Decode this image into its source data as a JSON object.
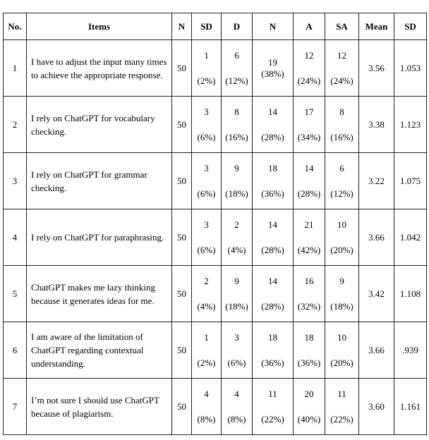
{
  "headers": [
    "No.",
    "Items",
    "N",
    "SD",
    "D",
    "N",
    "A",
    "SA",
    "Mean",
    "SD"
  ],
  "rows": [
    {
      "no": "1",
      "item": "I have to adjust the input many times to achieve the appropriate response.",
      "n": "50",
      "counts": [
        [
          "1",
          "(2%)"
        ],
        [
          "6",
          "(12%)"
        ],
        [
          "19",
          "(38%)"
        ],
        [
          "12",
          "(24%)"
        ],
        [
          "12",
          "(24%)"
        ]
      ],
      "mean": "3.56",
      "sd": "1.053"
    },
    {
      "no": "2",
      "item": "I rely on ChatGPT for vocabulary checking.",
      "n": "50",
      "counts": [
        [
          "3",
          "(6%)"
        ],
        [
          "8",
          "(16%)"
        ],
        [
          "14",
          "(28%)"
        ],
        [
          "17",
          "(34%)"
        ],
        [
          "8",
          "(16%)"
        ]
      ],
      "mean": "3.38",
      "sd": "1.123"
    },
    {
      "no": "3",
      "item": "I rely on ChatGPT for grammar checking.",
      "n": "50",
      "counts": [
        [
          "3",
          "(6%)"
        ],
        [
          "9",
          "(18%)"
        ],
        [
          "18",
          "(36%)"
        ],
        [
          "14",
          "(28%)"
        ],
        [
          "6",
          "(12%)"
        ]
      ],
      "mean": "3.22",
      "sd": "1.075"
    },
    {
      "no": "4",
      "item": "I rely on ChatGPT for paraphrasing.",
      "n": "50",
      "counts": [
        [
          "3",
          "(6%)"
        ],
        [
          "2",
          "(4%)"
        ],
        [
          "14",
          "(28%)"
        ],
        [
          "21",
          "(42%)"
        ],
        [
          "10",
          "(20%)"
        ]
      ],
      "mean": "3.66",
      "sd": "1.042"
    },
    {
      "no": "5",
      "item": "ChatGPT makes me lazy thinking because it generates ideas for me.",
      "n": "50",
      "counts": [
        [
          "2",
          "(4%)"
        ],
        [
          "9",
          "(18%)"
        ],
        [
          "14",
          "(28%)"
        ],
        [
          "16",
          "(32%)"
        ],
        [
          "9",
          "(18%)"
        ]
      ],
      "mean": "3.42",
      "sd": "1.108"
    },
    {
      "no": "6",
      "item": "I am aware of the limitation of ChatGPT regarding contextual understanding.",
      "n": "50",
      "counts": [
        [
          "1",
          "(2%)"
        ],
        [
          "3",
          "(6%)"
        ],
        [
          "18",
          "(36%)"
        ],
        [
          "18",
          "(36%)"
        ],
        [
          "10",
          "(20%)"
        ]
      ],
      "mean": "3.66",
      "sd": ".939"
    },
    {
      "no": "7",
      "item": "I’m not sure I should use ChatGPT because of plagiarism.",
      "n": "50",
      "counts": [
        [
          "4",
          "(8%)"
        ],
        [
          "4",
          "(8%)"
        ],
        [
          "11",
          "(22%)"
        ],
        [
          "20",
          "(40%)"
        ],
        [
          "11",
          "(22%)"
        ]
      ],
      "mean": "3.60",
      "sd": "1.161"
    }
  ]
}
